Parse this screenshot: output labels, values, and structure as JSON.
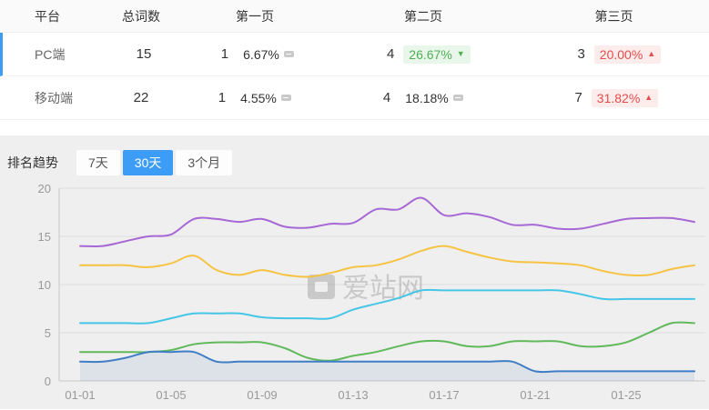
{
  "colors": {
    "accent_blue": "#3d9cf5",
    "up_red": "#e64c4c",
    "up_red_bg": "#fdecec",
    "down_green": "#4fae54",
    "down_green_bg": "#e9f7ea"
  },
  "table": {
    "headers": [
      "平台",
      "总词数",
      "第一页",
      "第二页",
      "第三页"
    ],
    "rows": [
      {
        "platform": "PC端",
        "total": "15",
        "pages": [
          {
            "count": "1",
            "pct": "6.67%",
            "trend": "flat"
          },
          {
            "count": "4",
            "pct": "26.67%",
            "trend": "down"
          },
          {
            "count": "3",
            "pct": "20.00%",
            "trend": "up"
          }
        ]
      },
      {
        "platform": "移动端",
        "total": "22",
        "pages": [
          {
            "count": "1",
            "pct": "4.55%",
            "trend": "flat"
          },
          {
            "count": "4",
            "pct": "18.18%",
            "trend": "flat"
          },
          {
            "count": "7",
            "pct": "31.82%",
            "trend": "up"
          }
        ]
      }
    ]
  },
  "trend": {
    "label": "排名趋势",
    "tabs": [
      {
        "label": "7天",
        "active": false
      },
      {
        "label": "30天",
        "active": true
      },
      {
        "label": "3个月",
        "active": false
      }
    ]
  },
  "watermark": "爱站网",
  "chart_data": {
    "type": "line",
    "x": [
      "01-01",
      "01-02",
      "01-03",
      "01-04",
      "01-05",
      "01-06",
      "01-07",
      "01-08",
      "01-09",
      "01-10",
      "01-11",
      "01-12",
      "01-13",
      "01-14",
      "01-15",
      "01-16",
      "01-17",
      "01-18",
      "01-19",
      "01-20",
      "01-21",
      "01-22",
      "01-23",
      "01-24",
      "01-25",
      "01-26",
      "01-27",
      "01-28"
    ],
    "x_tick_labels": [
      "01-01",
      "01-05",
      "01-09",
      "01-13",
      "01-17",
      "01-21",
      "01-25"
    ],
    "x_tick_every": 4,
    "ylim": [
      0,
      20
    ],
    "yticks": [
      0,
      5,
      10,
      15,
      20
    ],
    "grid": true,
    "legend": false,
    "series": [
      {
        "name": "line-purple",
        "color": "#a668d5",
        "values": [
          14,
          14,
          14.5,
          15,
          15.2,
          16.8,
          16.8,
          16.5,
          16.8,
          16,
          15.9,
          16.3,
          16.4,
          17.8,
          17.8,
          19,
          17.2,
          17.4,
          17,
          16.2,
          16.2,
          15.8,
          15.8,
          16.3,
          16.8,
          16.9,
          16.9,
          16.5
        ]
      },
      {
        "name": "line-yellow",
        "color": "#f6c343",
        "values": [
          12,
          12,
          12,
          11.8,
          12.2,
          13,
          11.5,
          11,
          11.5,
          11,
          10.8,
          11.2,
          11.8,
          12,
          12.6,
          13.5,
          14,
          13.4,
          12.8,
          12.4,
          12.3,
          12.2,
          12,
          11.4,
          11,
          11,
          11.6,
          12
        ]
      },
      {
        "name": "line-cyan",
        "color": "#46c6e6",
        "values": [
          6,
          6,
          6,
          6,
          6.5,
          7,
          7,
          7,
          6.6,
          6.5,
          6.5,
          6.5,
          7.4,
          8,
          8.6,
          9.4,
          9.4,
          9.4,
          9.4,
          9.4,
          9.4,
          9.4,
          9,
          8.5,
          8.5,
          8.5,
          8.5,
          8.5
        ]
      },
      {
        "name": "line-green",
        "color": "#61b95c",
        "values": [
          3,
          3,
          3,
          3,
          3.2,
          3.8,
          4,
          4,
          4,
          3.4,
          2.4,
          2.1,
          2.6,
          3,
          3.6,
          4.1,
          4.1,
          3.6,
          3.6,
          4.1,
          4.1,
          4.1,
          3.6,
          3.6,
          4,
          5,
          6,
          6
        ]
      },
      {
        "name": "line-blue",
        "color": "#3f7ec6",
        "area": true,
        "values": [
          2,
          2,
          2.4,
          3,
          3,
          3,
          2,
          2,
          2,
          2,
          2,
          2,
          2,
          2,
          2,
          2,
          2,
          2,
          2,
          2,
          1,
          1,
          1,
          1,
          1,
          1,
          1,
          1
        ]
      }
    ]
  }
}
